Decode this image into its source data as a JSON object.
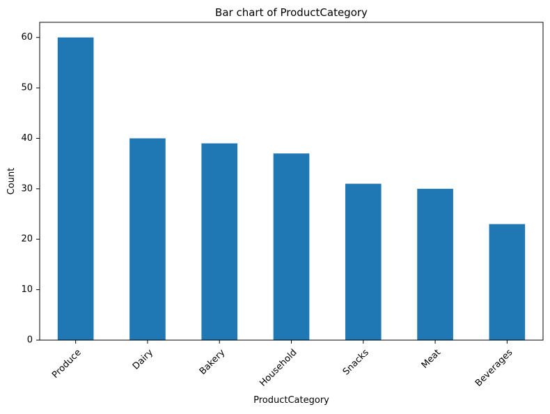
{
  "chart_data": {
    "type": "bar",
    "title": "Bar chart of ProductCategory",
    "xlabel": "ProductCategory",
    "ylabel": "Count",
    "categories": [
      "Produce",
      "Dairy",
      "Bakery",
      "Household",
      "Snacks",
      "Meat",
      "Beverages"
    ],
    "values": [
      60,
      40,
      39,
      37,
      31,
      30,
      23
    ],
    "ylim": [
      0,
      63
    ],
    "yticks": [
      0,
      10,
      20,
      30,
      40,
      50,
      60
    ],
    "bar_color": "#1f77b4",
    "grid": false,
    "legend": "none"
  }
}
